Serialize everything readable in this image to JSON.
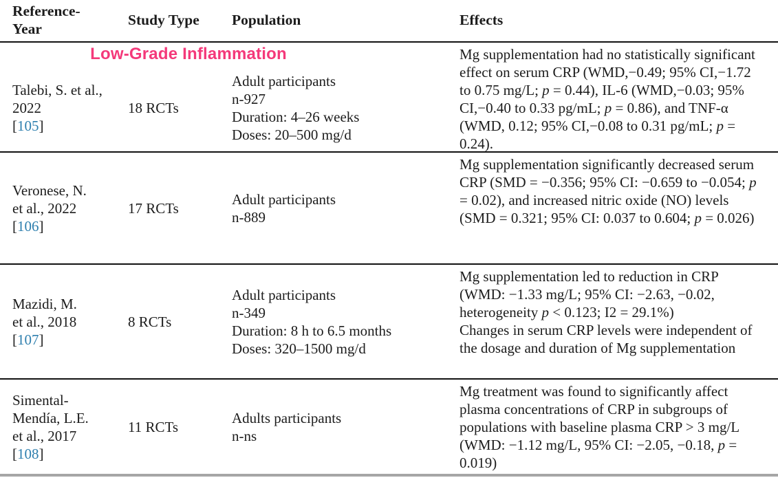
{
  "header": {
    "columns": [
      "Reference-Year",
      "Study Type",
      "Population",
      "Effects"
    ]
  },
  "section": {
    "label": "Low-Grade Inflammation"
  },
  "colors": {
    "section_pink": "#f4397a",
    "citation_blue": "#2e7fae",
    "text": "#1c1c1c"
  },
  "rows": [
    {
      "reference": [
        "Talebi, S. et al.,",
        "2022"
      ],
      "citation": "[105]",
      "study_type": "18 RCTs",
      "population": [
        "Adult participants",
        "n-927",
        "Duration: 4–26 weeks",
        "Doses: 20–500 mg/d"
      ],
      "effects": [
        "Mg supplementation had no statistically significant effect on serum CRP (WMD,−0.49; 95% CI,−1.72 to 0.75 mg/L; p = 0.44), IL-6 (WMD,−0.03; 95% CI,−0.40 to 0.33 pg/mL; p = 0.86), and TNF-α (WMD, 0.12; 95% CI,−0.08 to 0.31 pg/mL; p = 0.24)."
      ]
    },
    {
      "reference": [
        "Veronese, N.",
        "et al., 2022"
      ],
      "citation": "[106]",
      "study_type": "17 RCTs",
      "population": [
        "Adult participants",
        "n-889"
      ],
      "effects": [
        "Mg supplementation significantly decreased serum CRP (SMD = −0.356; 95% CI: −0.659 to −0.054; p = 0.02), and increased nitric oxide (NO) levels (SMD = 0.321; 95% CI: 0.037 to 0.604; p = 0.026)"
      ]
    },
    {
      "reference": [
        "Mazidi, M.",
        "et al., 2018"
      ],
      "citation": "[107]",
      "study_type": "8 RCTs",
      "population": [
        "Adult participants",
        "n-349",
        "Duration: 8 h to 6.5 months",
        "Doses: 320–1500 mg/d"
      ],
      "effects": [
        "Mg supplementation led to reduction in CRP (WMD: −1.33 mg/L; 95% CI: −2.63, −0.02, heterogeneity p < 0.123; I2 = 29.1%)",
        "Changes in serum CRP levels were independent of the dosage and duration of Mg supplementation"
      ]
    },
    {
      "reference": [
        "Simental-",
        "Mendía, L.E.",
        "et al., 2017"
      ],
      "citation": "[108]",
      "study_type": "11 RCTs",
      "population": [
        "Adults participants",
        "n-ns"
      ],
      "effects": [
        "Mg treatment was found to significantly affect plasma concentrations of CRP in subgroups of populations with baseline plasma CRP > 3 mg/L (WMD: −1.12 mg/L, 95% CI: −2.05, −0.18, p = 0.019)"
      ]
    }
  ]
}
